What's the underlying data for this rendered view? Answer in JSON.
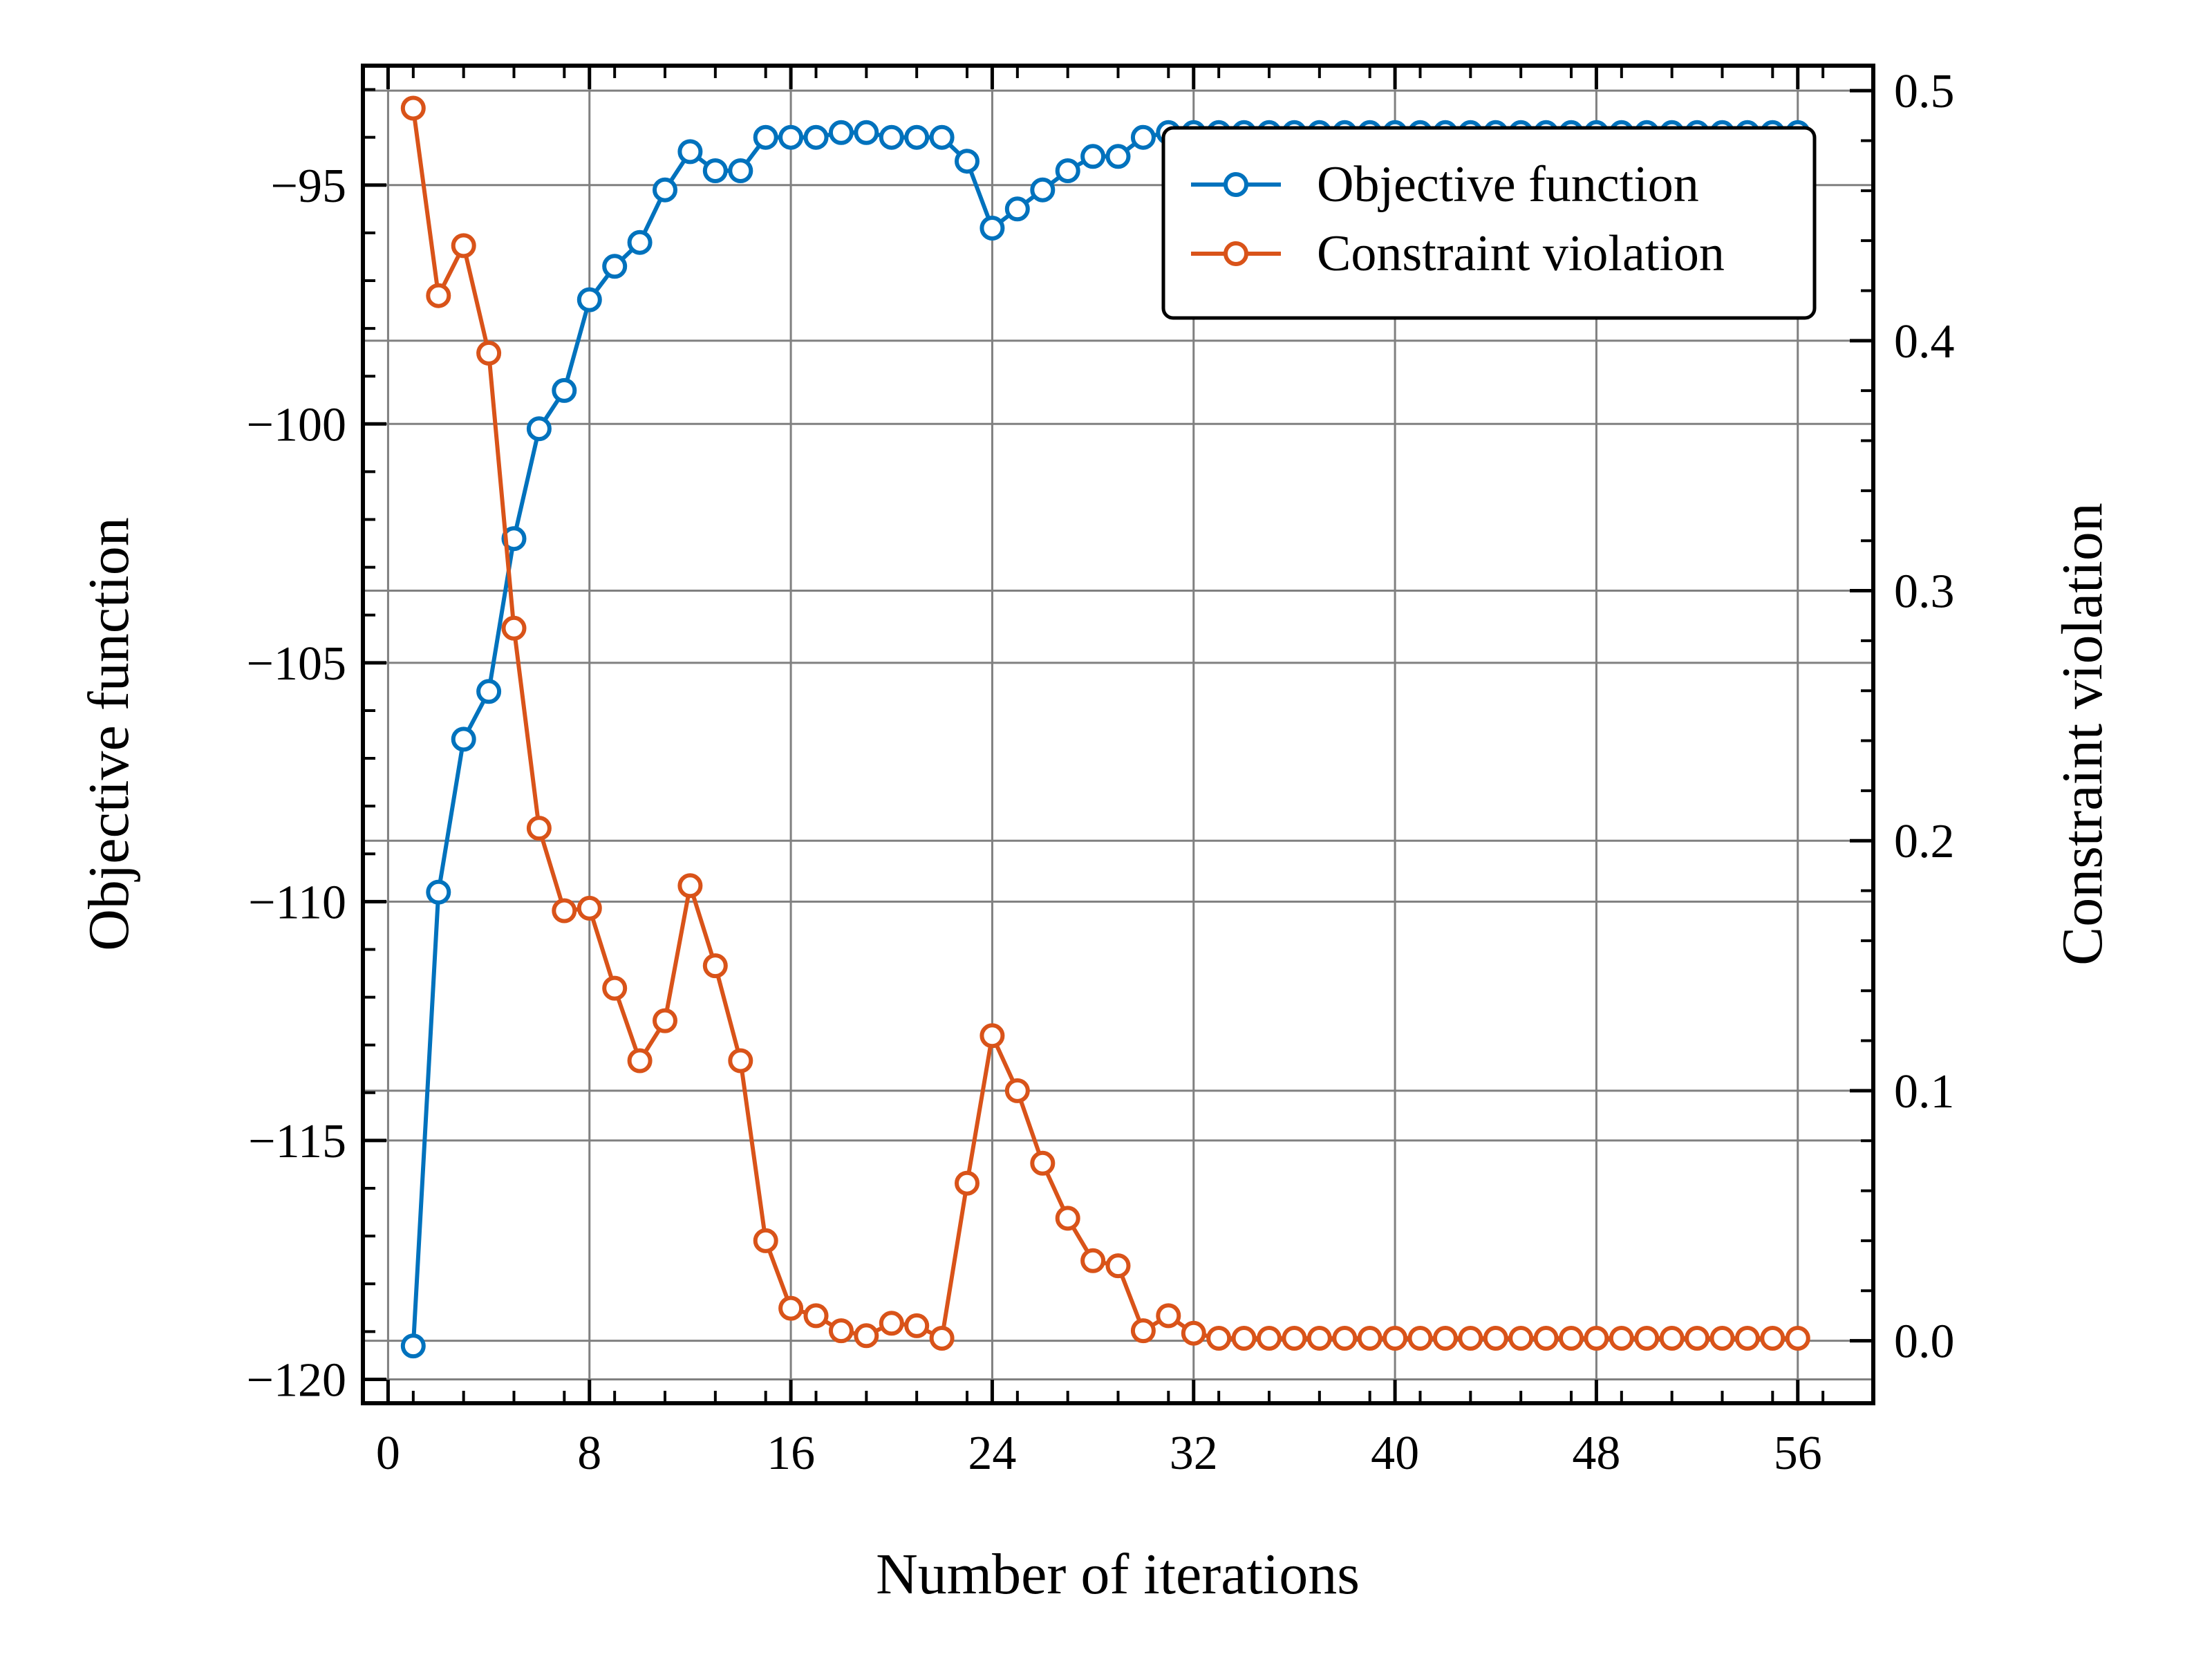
{
  "chart_data": {
    "type": "line",
    "xlabel": "Number of iterations",
    "ylabel_left": "Objective function",
    "ylabel_right": "Constraint violation",
    "xlim": [
      -1,
      59
    ],
    "ylim_left": [
      -120.5,
      -92.5
    ],
    "ylim_right": [
      -0.025,
      0.51
    ],
    "x_ticks": [
      0,
      8,
      16,
      24,
      32,
      40,
      48,
      56
    ],
    "y_ticks_left": [
      -95,
      -100,
      -105,
      -110,
      -115,
      -120
    ],
    "y_ticks_left_labels": [
      "−95",
      "−100",
      "−105",
      "−110",
      "−115",
      "−120"
    ],
    "y_ticks_right": [
      0.0,
      0.1,
      0.2,
      0.3,
      0.4,
      0.5
    ],
    "y_ticks_right_labels": [
      "0.0",
      "0.1",
      "0.2",
      "0.3",
      "0.4",
      "0.5"
    ],
    "grid": true,
    "legend_position": "top-right",
    "colors": {
      "objective": "#0072bd",
      "constraint": "#d95319",
      "grid": "#808080",
      "frame": "#000000"
    },
    "x": [
      1,
      2,
      3,
      4,
      5,
      6,
      7,
      8,
      9,
      10,
      11,
      12,
      13,
      14,
      15,
      16,
      17,
      18,
      19,
      20,
      21,
      22,
      23,
      24,
      25,
      26,
      27,
      28,
      29,
      30,
      31,
      32,
      33,
      34,
      35,
      36,
      37,
      38,
      39,
      40,
      41,
      42,
      43,
      44,
      45,
      46,
      47,
      48,
      49,
      50,
      51,
      52,
      53,
      54,
      55,
      56
    ],
    "series": [
      {
        "name": "Objective function",
        "axis": "left",
        "values": [
          -119.3,
          -109.8,
          -106.6,
          -105.6,
          -102.4,
          -100.1,
          -99.3,
          -97.4,
          -96.7,
          -96.2,
          -95.1,
          -94.3,
          -94.7,
          -94.7,
          -94.0,
          -94.0,
          -94.0,
          -93.9,
          -93.9,
          -94.0,
          -94.0,
          -94.0,
          -94.5,
          -95.9,
          -95.5,
          -95.1,
          -94.7,
          -94.4,
          -94.4,
          -94.0,
          -93.9,
          -93.9,
          -93.9,
          -93.9,
          -93.9,
          -93.9,
          -93.9,
          -93.9,
          -93.9,
          -93.9,
          -93.9,
          -93.9,
          -93.9,
          -93.9,
          -93.9,
          -93.9,
          -93.9,
          -93.9,
          -93.9,
          -93.9,
          -93.9,
          -93.9,
          -93.9,
          -93.9,
          -93.9,
          -93.9
        ]
      },
      {
        "name": "Constraint violation",
        "axis": "right",
        "values": [
          0.493,
          0.418,
          0.438,
          0.395,
          0.285,
          0.205,
          0.172,
          0.173,
          0.141,
          0.112,
          0.128,
          0.182,
          0.15,
          0.112,
          0.04,
          0.013,
          0.01,
          0.004,
          0.002,
          0.007,
          0.006,
          0.001,
          0.063,
          0.122,
          0.1,
          0.071,
          0.049,
          0.032,
          0.03,
          0.004,
          0.01,
          0.003,
          0.001,
          0.001,
          0.001,
          0.001,
          0.001,
          0.001,
          0.001,
          0.001,
          0.001,
          0.001,
          0.001,
          0.001,
          0.001,
          0.001,
          0.001,
          0.001,
          0.001,
          0.001,
          0.001,
          0.001,
          0.001,
          0.001,
          0.001,
          0.001
        ]
      }
    ]
  }
}
